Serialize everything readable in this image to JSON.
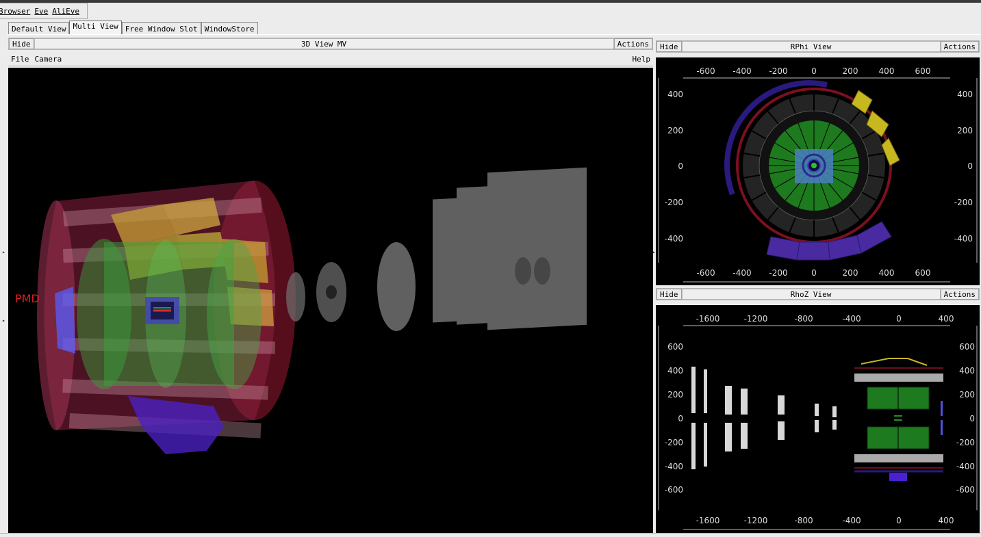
{
  "menubar": {
    "items": [
      "Browser",
      "Eve",
      "AliEve"
    ]
  },
  "tabs": [
    {
      "label": "Default View",
      "active": false
    },
    {
      "label": "Multi View",
      "active": true
    },
    {
      "label": "Free Window Slot",
      "active": false
    },
    {
      "label": "WindowStore",
      "active": false
    }
  ],
  "view3d": {
    "hide_label": "Hide",
    "title": "3D View MV",
    "actions_label": "Actions",
    "menu": {
      "file": "File",
      "camera": "Camera",
      "help": "Help"
    },
    "annotation": "PMD"
  },
  "rphi": {
    "hide_label": "Hide",
    "title": "RPhi View",
    "actions_label": "Actions",
    "x_ticks": [
      "-600",
      "-400",
      "-200",
      "0",
      "200",
      "400",
      "600"
    ],
    "y_ticks": [
      "400",
      "200",
      "0",
      "-200",
      "-400"
    ]
  },
  "rhoz": {
    "hide_label": "Hide",
    "title": "RhoZ View",
    "actions_label": "Actions",
    "x_ticks": [
      "-1600",
      "-1200",
      "-800",
      "-400",
      "0",
      "400"
    ],
    "y_ticks": [
      "600",
      "400",
      "200",
      "0",
      "-200",
      "-400",
      "-600"
    ]
  },
  "colors": {
    "background": "#000000",
    "tpc": "#1e7a1e",
    "its": "#4a7fbf",
    "emcal": "#c8b820",
    "phos": "#4a2aa0",
    "trd": "#2e2e2e",
    "tof": "#8a1020",
    "muon_chambers": "#d8d8d8"
  }
}
